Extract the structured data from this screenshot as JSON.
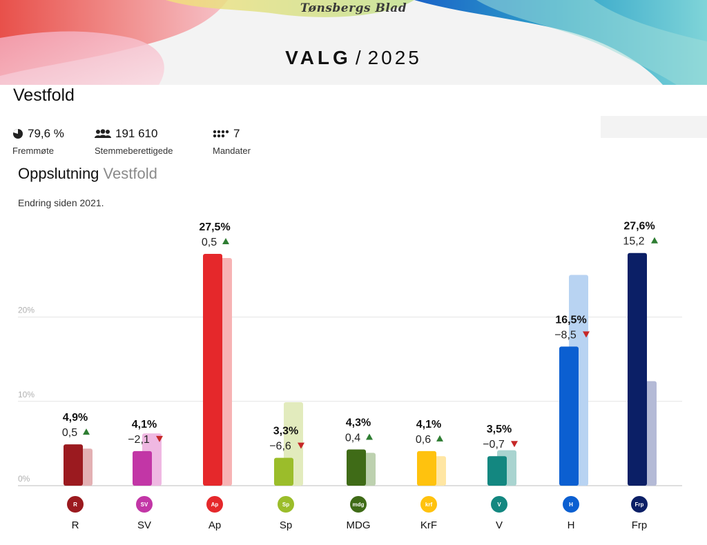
{
  "header": {
    "masthead": "Tønsbergs Blad",
    "election_word": "VALG",
    "separator": "/",
    "year": "2025"
  },
  "region": "Vestfold",
  "stats": [
    {
      "icon": "pie-icon",
      "value": "79,6 %",
      "label": "Fremmøte"
    },
    {
      "icon": "people-icon",
      "value": "191 610",
      "label": "Stemmeberettigede"
    },
    {
      "icon": "seats-icon",
      "value": "7",
      "label": "Mandater"
    }
  ],
  "section": {
    "title": "Oppslutning",
    "title_region": "Vestfold",
    "subtitle": "Endring siden 2021."
  },
  "chart_data": {
    "type": "bar",
    "categories": [
      "R",
      "SV",
      "Ap",
      "Sp",
      "MDG",
      "KrF",
      "V",
      "H",
      "Frp"
    ],
    "series": [
      {
        "values": [
          4.9,
          4.1,
          27.5,
          3.3,
          4.3,
          4.1,
          3.5,
          16.5,
          27.6
        ]
      },
      {
        "values": [
          4.4,
          6.2,
          27.0,
          9.9,
          3.9,
          3.5,
          4.2,
          25.0,
          12.4
        ]
      }
    ],
    "value_labels": [
      "4,9%",
      "4,1%",
      "27,5%",
      "3,3%",
      "4,3%",
      "4,1%",
      "3,5%",
      "16,5%",
      "27,6%"
    ],
    "change_labels": [
      "0,5",
      "−2,1",
      "0,5",
      "−6,6",
      "0,4",
      "0,6",
      "−0,7",
      "−8,5",
      "15,2"
    ],
    "change_direction": [
      "up",
      "down",
      "up",
      "down",
      "up",
      "up",
      "down",
      "down",
      "up"
    ],
    "colors": [
      "#9b1a1f",
      "#c236a6",
      "#e5282b",
      "#9bbd2a",
      "#3f6b17",
      "#ffc20e",
      "#138780",
      "#0b5fd1",
      "#0b1f66"
    ],
    "prev_colors": [
      "#e3b0b3",
      "#efb8e2",
      "#f7b3b4",
      "#e2ebbd",
      "#bdd1af",
      "#ffe6a3",
      "#a9d4d0",
      "#b8d3f2",
      "#b4bad6"
    ],
    "logos": [
      "R",
      "SV",
      "Ap",
      "Sp",
      "mdg",
      "krf",
      "V",
      "H",
      "Frp"
    ],
    "yticks": [
      0,
      10,
      20
    ],
    "ytick_labels": [
      "0%",
      "10%",
      "20%"
    ],
    "ylim": [
      0,
      30
    ],
    "grid": true,
    "up_color": "#2e7d32",
    "down_color": "#c62828"
  }
}
